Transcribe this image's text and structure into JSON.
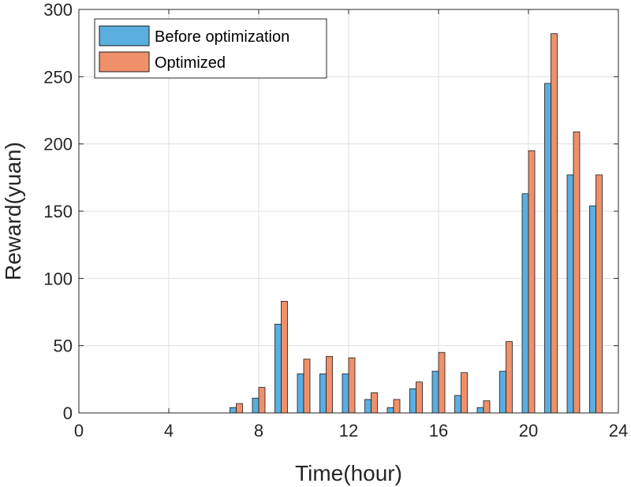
{
  "chart_data": {
    "type": "bar",
    "xlabel": "Time(hour)",
    "ylabel": "Reward(yuan)",
    "xlim": [
      0,
      24
    ],
    "ylim": [
      0,
      300
    ],
    "xticks": [
      0,
      4,
      8,
      12,
      16,
      20,
      24
    ],
    "yticks": [
      0,
      50,
      100,
      150,
      200,
      250,
      300
    ],
    "grid": true,
    "legend_position": "top-left",
    "x": [
      7,
      8,
      9,
      10,
      11,
      12,
      13,
      14,
      15,
      16,
      17,
      18,
      19,
      20,
      21,
      22,
      23
    ],
    "series": [
      {
        "name": "Before optimization",
        "color": "#5aaee0",
        "values": [
          4,
          11,
          66,
          29,
          29,
          29,
          10,
          4,
          18,
          31,
          13,
          4,
          31,
          163,
          245,
          177,
          154
        ]
      },
      {
        "name": "Optimized",
        "color": "#f0906a",
        "values": [
          7,
          19,
          83,
          40,
          42,
          41,
          15,
          10,
          23,
          45,
          30,
          9,
          53,
          195,
          282,
          209,
          177
        ]
      }
    ]
  }
}
